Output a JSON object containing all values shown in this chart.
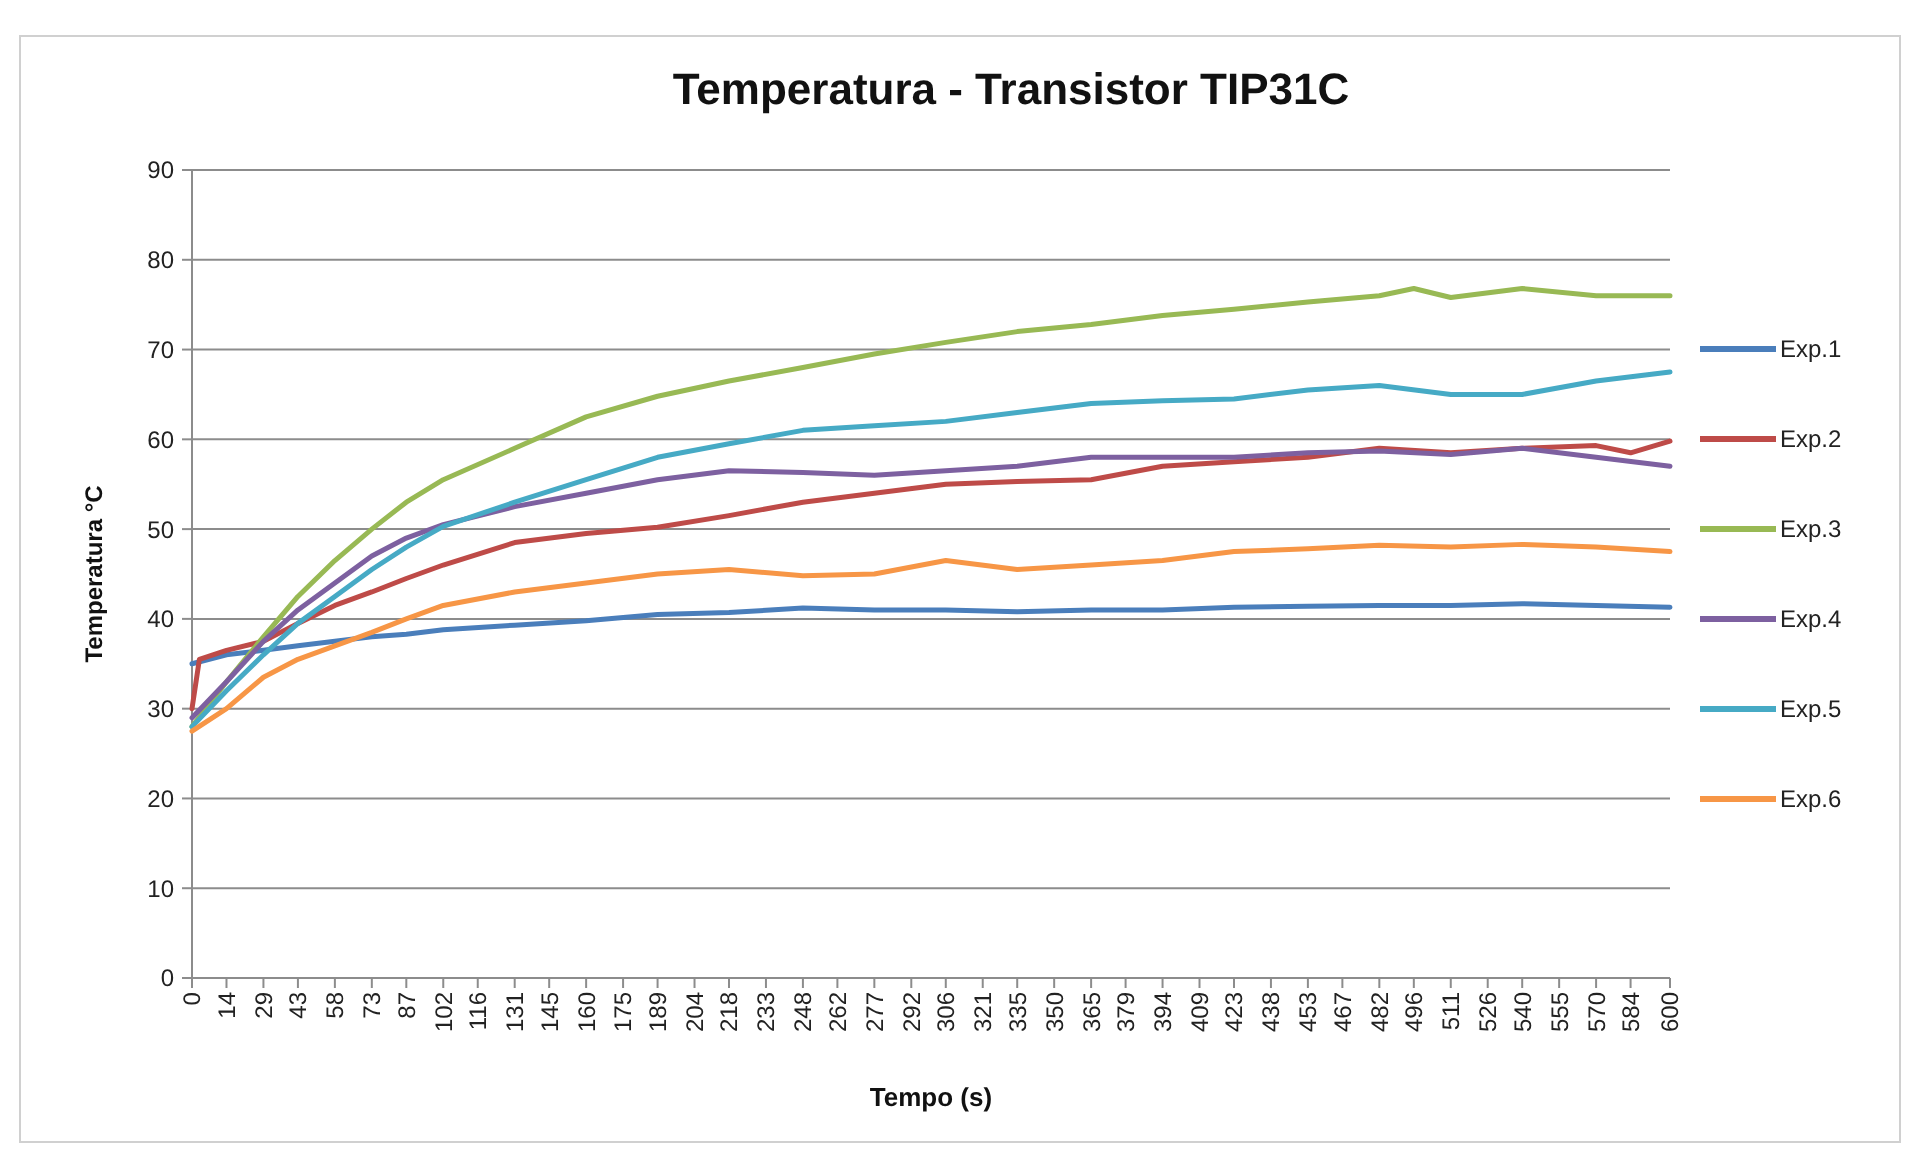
{
  "chart_data": {
    "type": "line",
    "title": "Temperatura - Transistor TIP31C",
    "xlabel": "Tempo (s)",
    "ylabel": "Temperatura °C",
    "xlim": [
      0,
      600
    ],
    "xticks": [
      0,
      14,
      29,
      43,
      58,
      73,
      87,
      102,
      116,
      131,
      145,
      160,
      175,
      189,
      204,
      218,
      233,
      248,
      262,
      277,
      292,
      306,
      321,
      335,
      350,
      365,
      379,
      394,
      409,
      423,
      438,
      453,
      467,
      482,
      496,
      511,
      526,
      540,
      555,
      570,
      584,
      600
    ],
    "ylim": [
      0,
      90
    ],
    "yticks": [
      0,
      10,
      20,
      30,
      40,
      50,
      60,
      70,
      80,
      90
    ],
    "grid": "y",
    "legend": "right",
    "marker": "none",
    "line_style": "solid",
    "series": [
      {
        "name": "Exp.1",
        "color": "#4a7ebb",
        "x": [
          0,
          14,
          29,
          43,
          58,
          73,
          87,
          102,
          131,
          160,
          189,
          218,
          248,
          277,
          306,
          335,
          365,
          394,
          423,
          453,
          482,
          511,
          540,
          570,
          600
        ],
        "values": [
          35,
          36,
          36.5,
          37,
          37.5,
          38,
          38.3,
          38.8,
          39.3,
          39.8,
          40.5,
          40.7,
          41.2,
          41,
          41,
          40.8,
          41,
          41,
          41.3,
          41.4,
          41.5,
          41.5,
          41.7,
          41.5,
          41.3
        ]
      },
      {
        "name": "Exp.2",
        "color": "#be4b48",
        "x": [
          0,
          3,
          14,
          29,
          43,
          58,
          73,
          87,
          102,
          131,
          160,
          189,
          218,
          248,
          277,
          306,
          335,
          365,
          394,
          423,
          453,
          482,
          511,
          540,
          570,
          584,
          600
        ],
        "values": [
          30,
          35.5,
          36.5,
          37.5,
          39.5,
          41.5,
          43,
          44.5,
          46,
          48.5,
          49.5,
          50.2,
          51.5,
          53,
          54,
          55,
          55.3,
          55.5,
          57,
          57.5,
          58,
          59,
          58.5,
          59,
          59.3,
          58.5,
          59.8
        ]
      },
      {
        "name": "Exp.3",
        "color": "#98b954",
        "x": [
          0,
          14,
          29,
          43,
          58,
          73,
          87,
          102,
          131,
          160,
          189,
          218,
          248,
          277,
          306,
          335,
          365,
          394,
          423,
          453,
          482,
          496,
          511,
          540,
          570,
          600
        ],
        "values": [
          28,
          33,
          38,
          42.5,
          46.5,
          50,
          53,
          55.5,
          59,
          62.5,
          64.8,
          66.5,
          68,
          69.5,
          70.8,
          72,
          72.8,
          73.8,
          74.5,
          75.3,
          76,
          76.8,
          75.8,
          76.8,
          76,
          76
        ]
      },
      {
        "name": "Exp.4",
        "color": "#7d60a0",
        "x": [
          0,
          14,
          29,
          43,
          58,
          73,
          87,
          102,
          131,
          160,
          189,
          218,
          248,
          277,
          306,
          335,
          365,
          394,
          423,
          453,
          482,
          511,
          540,
          570,
          600
        ],
        "values": [
          29,
          33,
          37.5,
          41,
          44,
          47,
          49,
          50.5,
          52.5,
          54,
          55.5,
          56.5,
          56.3,
          56,
          56.5,
          57,
          58,
          58,
          58,
          58.5,
          58.7,
          58.3,
          59,
          58,
          57
        ]
      },
      {
        "name": "Exp.5",
        "color": "#46aac5",
        "x": [
          0,
          14,
          29,
          43,
          58,
          73,
          87,
          102,
          131,
          160,
          189,
          218,
          248,
          277,
          306,
          335,
          365,
          394,
          423,
          453,
          482,
          511,
          540,
          570,
          600
        ],
        "values": [
          28,
          32,
          36,
          39.5,
          42.5,
          45.5,
          48,
          50.3,
          53,
          55.5,
          58,
          59.5,
          61,
          61.5,
          62,
          63,
          64,
          64.3,
          64.5,
          65.5,
          66,
          65,
          65,
          66.5,
          67.5
        ]
      },
      {
        "name": "Exp.6",
        "color": "#f79646",
        "x": [
          0,
          14,
          29,
          43,
          58,
          73,
          87,
          102,
          131,
          160,
          189,
          218,
          248,
          277,
          306,
          335,
          365,
          394,
          423,
          453,
          482,
          511,
          540,
          570,
          600
        ],
        "values": [
          27.5,
          30,
          33.5,
          35.5,
          37,
          38.5,
          40,
          41.5,
          43,
          44,
          45,
          45.5,
          44.8,
          45,
          46.5,
          45.5,
          46,
          46.5,
          47.5,
          47.8,
          48.2,
          48,
          48.3,
          48,
          47.5
        ]
      }
    ]
  }
}
